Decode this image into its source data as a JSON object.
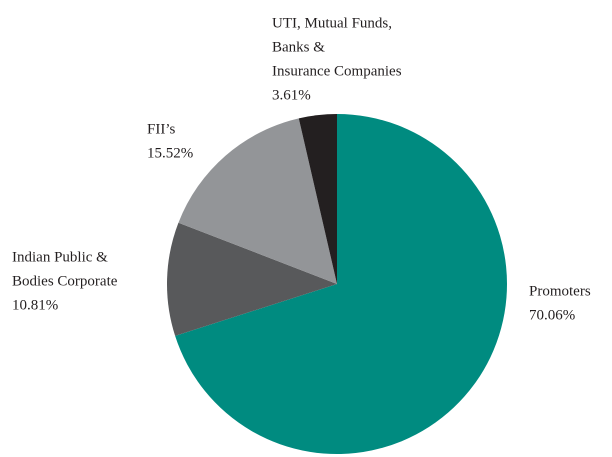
{
  "chart_data": {
    "type": "pie",
    "categories": [
      [
        "Promoters"
      ],
      [
        "Indian Public &",
        "Bodies Corporate"
      ],
      [
        "FII’s"
      ],
      [
        "UTI, Mutual Funds,",
        "Banks &",
        "Insurance Companies"
      ]
    ],
    "values": [
      70.06,
      10.81,
      15.52,
      3.61
    ],
    "value_labels": [
      "70.06%",
      "10.81%",
      "15.52%",
      "3.61%"
    ],
    "colors": [
      "#008b80",
      "#58595b",
      "#939598",
      "#231f20"
    ]
  }
}
